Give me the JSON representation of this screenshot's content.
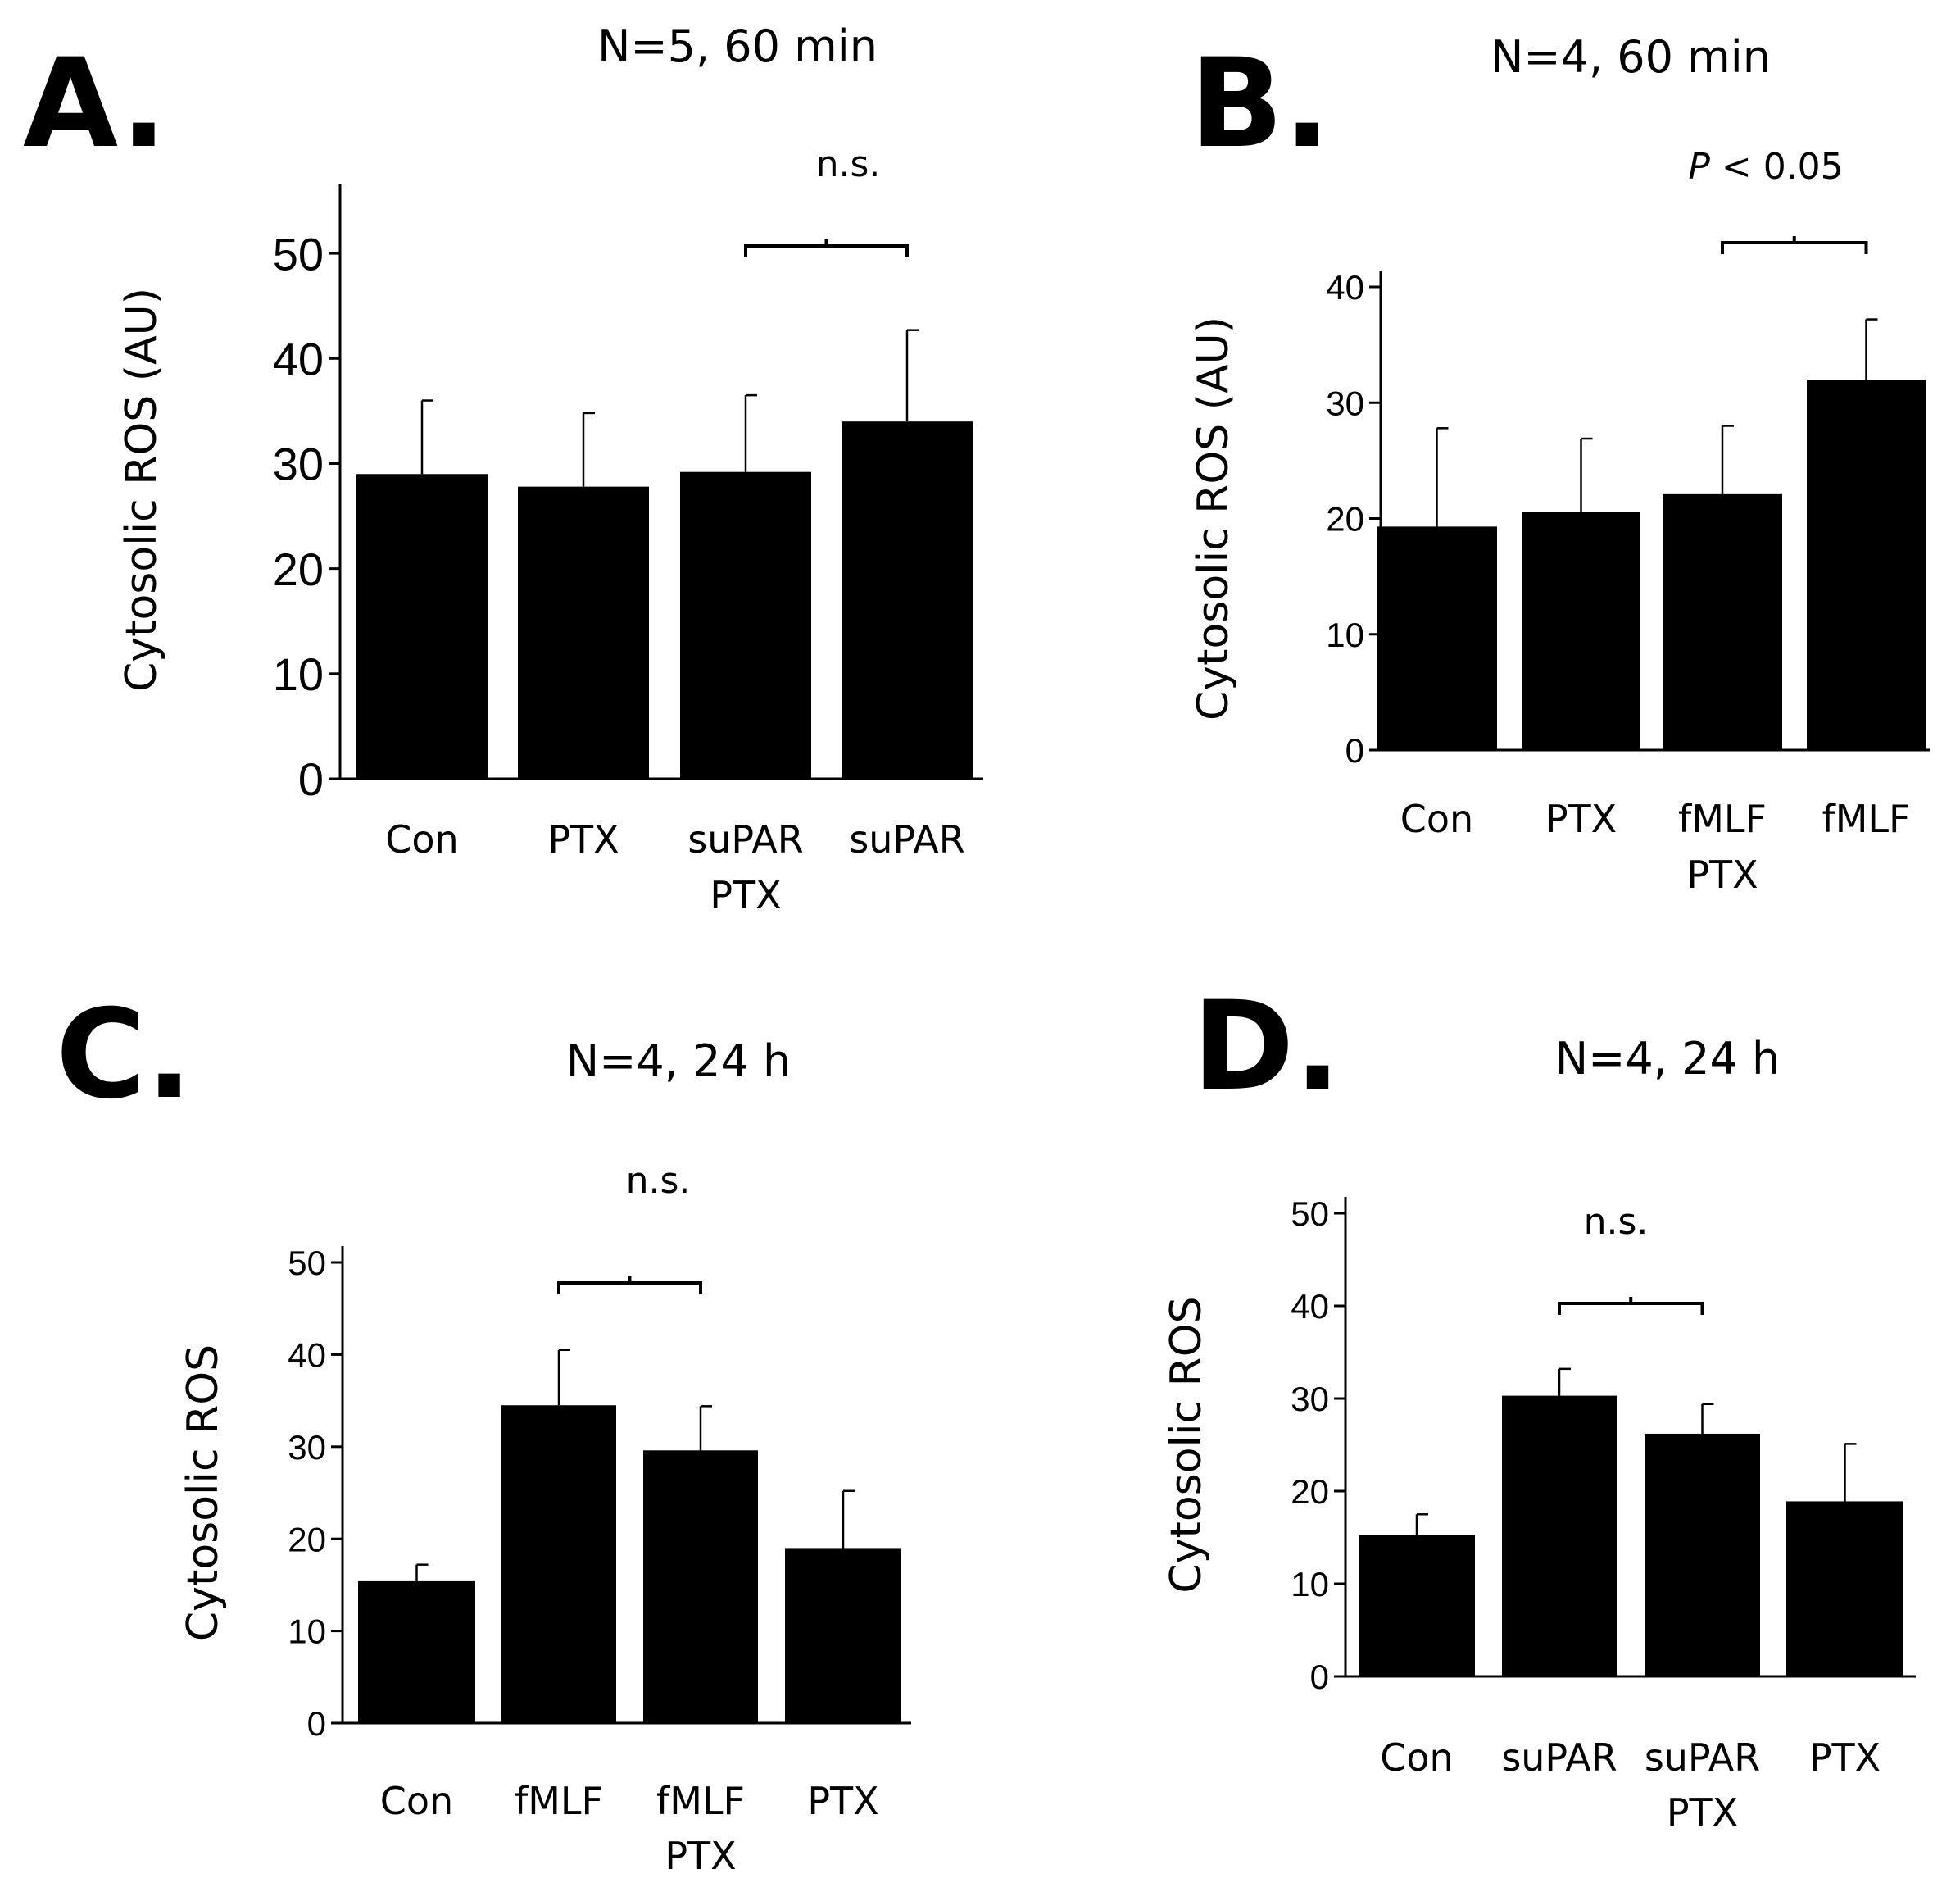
{
  "chart_data": [
    {
      "type": "bar",
      "panel": "A.",
      "title": "N=5, 60 min",
      "ylabel": "Cytosolic ROS (AU)",
      "ylim": [
        0,
        55
      ],
      "yticks": [
        "0",
        "10",
        "20",
        "30",
        "40",
        "50"
      ],
      "categories": [
        [
          "Con"
        ],
        [
          "PTX"
        ],
        [
          "suPAR",
          "PTX"
        ],
        [
          "suPAR"
        ]
      ],
      "values": [
        29,
        27.8,
        29.2,
        34
      ],
      "errors": [
        7,
        7,
        7.3,
        8.7
      ],
      "significance": {
        "label": "n.s.",
        "italic_p": false,
        "from": 2,
        "to": 3
      }
    },
    {
      "type": "bar",
      "panel": "B.",
      "title": "N=4, 60 min",
      "ylabel": "Cytosolic ROS (AU)",
      "ylim": [
        0,
        40
      ],
      "yticks": [
        "0",
        "10",
        "20",
        "30",
        "40"
      ],
      "categories": [
        [
          "Con"
        ],
        [
          "PTX"
        ],
        [
          "fMLF",
          "PTX"
        ],
        [
          "fMLF"
        ]
      ],
      "values": [
        19.3,
        20.6,
        22.1,
        32
      ],
      "errors": [
        8.5,
        6.3,
        5.9,
        5.2
      ],
      "significance": {
        "label": "< 0.05",
        "italic_p": true,
        "p_symbol": "P",
        "from": 2,
        "to": 3
      }
    },
    {
      "type": "bar",
      "panel": "C.",
      "title": "N=4, 24 h",
      "ylabel": "Cytosolic ROS",
      "ylim": [
        0,
        50
      ],
      "yticks": [
        "0",
        "10",
        "20",
        "30",
        "40",
        "50"
      ],
      "categories": [
        [
          "Con"
        ],
        [
          "fMLF"
        ],
        [
          "fMLF",
          "PTX"
        ],
        [
          "PTX"
        ]
      ],
      "values": [
        15.4,
        34.5,
        29.6,
        19
      ],
      "errors": [
        1.8,
        6,
        4.8,
        6.2
      ],
      "significance": {
        "label": "n.s.",
        "italic_p": false,
        "from": 1,
        "to": 2
      }
    },
    {
      "type": "bar",
      "panel": "D.",
      "title": "N=4, 24 h",
      "ylabel": "Cytosolic ROS",
      "ylim": [
        0,
        50
      ],
      "yticks": [
        "0",
        "10",
        "20",
        "30",
        "40",
        "50"
      ],
      "categories": [
        [
          "Con"
        ],
        [
          "suPAR"
        ],
        [
          "suPAR",
          "PTX"
        ],
        [
          "PTX"
        ]
      ],
      "values": [
        15.3,
        30.3,
        26.2,
        18.9
      ],
      "errors": [
        2.2,
        2.9,
        3.2,
        6.2
      ],
      "significance": {
        "label": "n.s.",
        "italic_p": false,
        "from": 1,
        "to": 2
      }
    }
  ]
}
